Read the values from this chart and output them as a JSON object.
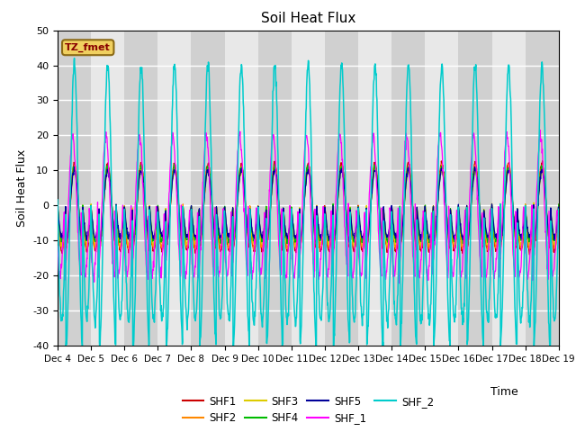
{
  "title": "Soil Heat Flux",
  "ylabel": "Soil Heat Flux",
  "xlabel": "Time",
  "ylim": [
    -40,
    50
  ],
  "yticks": [
    -40,
    -30,
    -20,
    -10,
    0,
    10,
    20,
    30,
    40,
    50
  ],
  "xtick_labels": [
    "Dec 4",
    "Dec 5",
    "Dec 6",
    "Dec 7",
    "Dec 8",
    "Dec 9",
    "Dec 10",
    "Dec 11",
    "Dec 12",
    "Dec 13",
    "Dec 14",
    "Dec 15",
    "Dec 16",
    "Dec 17",
    "Dec 18",
    "Dec 19"
  ],
  "series_colors": {
    "SHF1": "#cc0000",
    "SHF2": "#ff8800",
    "SHF3": "#ddcc00",
    "SHF4": "#00bb00",
    "SHF5": "#000099",
    "SHF_1": "#ff00ff",
    "SHF_2": "#00cccc"
  },
  "tz_label": "TZ_fmet",
  "n_days": 15,
  "points_per_day": 96
}
